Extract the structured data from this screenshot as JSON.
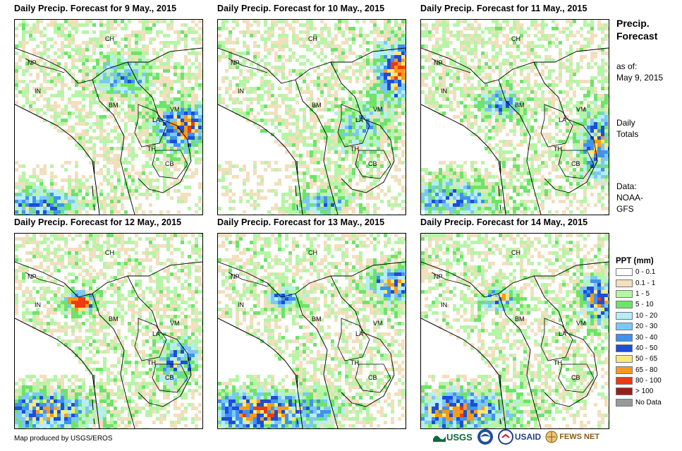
{
  "panels": [
    {
      "title": "Daily Precip. Forecast for 9 May., 2015"
    },
    {
      "title": "Daily Precip. Forecast for 10 May., 2015"
    },
    {
      "title": "Daily Precip. Forecast for 11 May., 2015"
    },
    {
      "title": "Daily Precip. Forecast for 12 May., 2015"
    },
    {
      "title": "Daily Precip. Forecast for 13 May., 2015"
    },
    {
      "title": "Daily Precip. Forecast for 14 May., 2015"
    }
  ],
  "map_labels": {
    "ch": "CH",
    "np": "NP",
    "in": "IN",
    "bm": "BM",
    "la": "LA",
    "vm": "VM",
    "th": "TH",
    "cb": "CB"
  },
  "side": {
    "title_line1": "Precip.",
    "title_line2": "Forecast",
    "asof_line1": "as of:",
    "asof_line2": "May 9, 2015",
    "totals_line1": "Daily",
    "totals_line2": "Totals",
    "data_line1": "Data:",
    "data_line2": "NOAA-",
    "data_line3": "GFS"
  },
  "legend": {
    "title": "PPT (mm)",
    "items": [
      {
        "label": "0 - 0.1",
        "color": "#ffffff"
      },
      {
        "label": "0.1 - 1",
        "color": "#f2dfbd"
      },
      {
        "label": "1 - 5",
        "color": "#b6f5a6"
      },
      {
        "label": "5 - 10",
        "color": "#6ee36a"
      },
      {
        "label": "10 - 20",
        "color": "#b5eef5"
      },
      {
        "label": "20 - 30",
        "color": "#7dc8f3"
      },
      {
        "label": "30 - 40",
        "color": "#3f92ee"
      },
      {
        "label": "40 - 50",
        "color": "#1c4ed6"
      },
      {
        "label": "50 - 65",
        "color": "#f9e87a"
      },
      {
        "label": "65 - 80",
        "color": "#f79a1c"
      },
      {
        "label": "80 - 100",
        "color": "#ee3a10"
      },
      {
        "label": "> 100",
        "color": "#a31a1a"
      },
      {
        "label": "No Data",
        "color": "#999999"
      }
    ]
  },
  "credit": "Map produced by USGS/EROS",
  "logos": {
    "usgs": "USGS",
    "usaid": "USAID",
    "fews": "FEWS NET"
  }
}
